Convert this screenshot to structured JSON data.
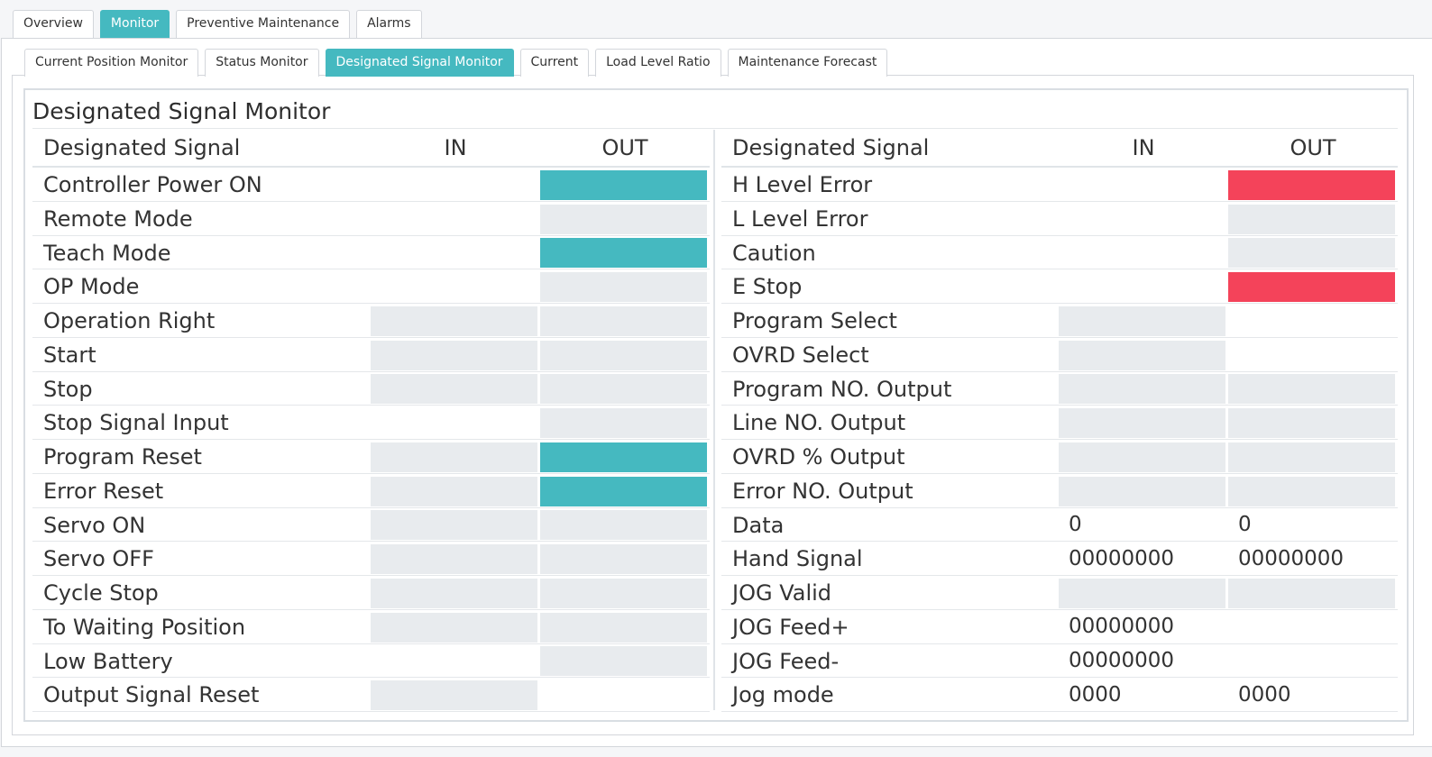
{
  "top_tabs": [
    {
      "label": "Overview",
      "active": false
    },
    {
      "label": "Monitor",
      "active": true
    },
    {
      "label": "Preventive Maintenance",
      "active": false
    },
    {
      "label": "Alarms",
      "active": false
    }
  ],
  "sub_tabs": [
    {
      "label": "Current Position Monitor",
      "active": false
    },
    {
      "label": "Status Monitor",
      "active": false
    },
    {
      "label": "Designated Signal Monitor",
      "active": true
    },
    {
      "label": "Current",
      "active": false
    },
    {
      "label": "Load Level Ratio",
      "active": false
    },
    {
      "label": "Maintenance Forecast",
      "active": false
    }
  ],
  "page_title": "Designated Signal Monitor",
  "colors": {
    "accent": "#45b9c0",
    "error": "#f4435a",
    "inactive": "#e8ebee"
  },
  "left_table": {
    "headers": {
      "signal": "Designated Signal",
      "in": "IN",
      "out": "OUT"
    },
    "rows": [
      {
        "name": "Controller Power ON",
        "in": "none",
        "out": "on"
      },
      {
        "name": "Remote Mode",
        "in": "none",
        "out": "off"
      },
      {
        "name": "Teach Mode",
        "in": "none",
        "out": "on"
      },
      {
        "name": "OP Mode",
        "in": "none",
        "out": "off"
      },
      {
        "name": "Operation Right",
        "in": "off",
        "out": "off"
      },
      {
        "name": "Start",
        "in": "off",
        "out": "off"
      },
      {
        "name": "Stop",
        "in": "off",
        "out": "off"
      },
      {
        "name": "Stop Signal Input",
        "in": "none",
        "out": "off"
      },
      {
        "name": "Program Reset",
        "in": "off",
        "out": "on"
      },
      {
        "name": "Error Reset",
        "in": "off",
        "out": "on"
      },
      {
        "name": "Servo ON",
        "in": "off",
        "out": "off"
      },
      {
        "name": "Servo OFF",
        "in": "off",
        "out": "off"
      },
      {
        "name": "Cycle Stop",
        "in": "off",
        "out": "off"
      },
      {
        "name": "To Waiting Position",
        "in": "off",
        "out": "off"
      },
      {
        "name": "Low Battery",
        "in": "none",
        "out": "off"
      },
      {
        "name": "Output Signal Reset",
        "in": "off",
        "out": "none"
      }
    ]
  },
  "right_table": {
    "headers": {
      "signal": "Designated Signal",
      "in": "IN",
      "out": "OUT"
    },
    "rows": [
      {
        "name": "H Level Error",
        "in": "none",
        "out": "err"
      },
      {
        "name": "L Level Error",
        "in": "none",
        "out": "off"
      },
      {
        "name": "Caution",
        "in": "none",
        "out": "off"
      },
      {
        "name": "E Stop",
        "in": "none",
        "out": "err"
      },
      {
        "name": "Program Select",
        "in": "off",
        "out": "none"
      },
      {
        "name": "OVRD Select",
        "in": "off",
        "out": "none"
      },
      {
        "name": "Program NO. Output",
        "in": "off",
        "out": "off"
      },
      {
        "name": "Line NO. Output",
        "in": "off",
        "out": "off"
      },
      {
        "name": "OVRD % Output",
        "in": "off",
        "out": "off"
      },
      {
        "name": "Error NO. Output",
        "in": "off",
        "out": "off"
      },
      {
        "name": "Data",
        "in": "none",
        "out": "none",
        "in_value": "0",
        "out_value": "0"
      },
      {
        "name": "Hand Signal",
        "in": "none",
        "out": "none",
        "in_value": "00000000",
        "out_value": "00000000"
      },
      {
        "name": "JOG Valid",
        "in": "off",
        "out": "off"
      },
      {
        "name": "JOG Feed+",
        "in": "none",
        "out": "none",
        "in_value": "00000000"
      },
      {
        "name": "JOG Feed-",
        "in": "none",
        "out": "none",
        "in_value": "00000000"
      },
      {
        "name": "Jog mode",
        "in": "none",
        "out": "none",
        "in_value": "0000",
        "out_value": "0000"
      }
    ]
  }
}
